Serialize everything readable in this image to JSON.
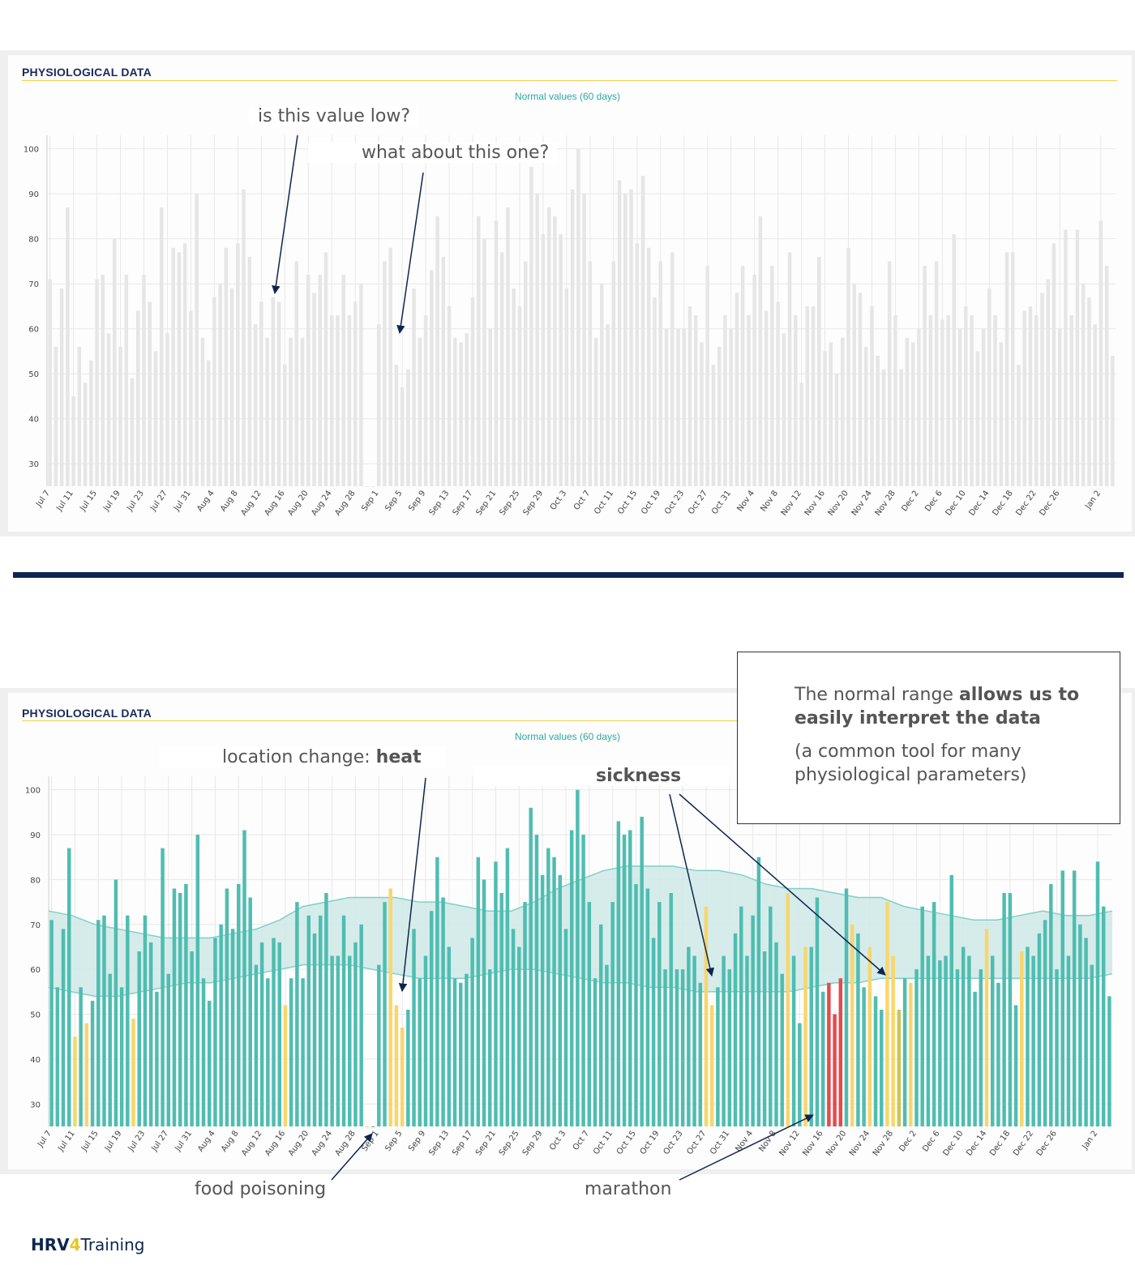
{
  "panel_title": "PHYSIOLOGICAL DATA",
  "legend_label": "Normal values (60 days)",
  "top_notes": {
    "q1": "is this value low?",
    "q2": "what about this one?"
  },
  "bottom_notes": {
    "heat_prefix": "location change: ",
    "heat_bold": "heat",
    "sickness": "sickness",
    "food": "food poisoning",
    "marathon": "marathon"
  },
  "info_box": {
    "line1_prefix": "The normal range ",
    "line1_bold": "allows us to easily interpret the data",
    "line2": "(a common tool for many physiological parameters)"
  },
  "logo": {
    "part1": "HRV",
    "part2": "4",
    "part3": "Training"
  },
  "colors": {
    "gray_bar": "#e6e6e6",
    "teal_bar": "#4fbdb1",
    "yellow_bar": "#f7d66b",
    "red_bar": "#e44b4b",
    "olive_bar": "#c8c65a",
    "band_fill": "#cfe9e6",
    "band_line": "#7fd0c8"
  },
  "chart_data": {
    "type": "bar",
    "start_date": "Jul 7",
    "end_date": "Jan 2",
    "x_tick_labels": [
      "Jul 7",
      "Jul 11",
      "Jul 15",
      "Jul 19",
      "Jul 23",
      "Jul 27",
      "Jul 31",
      "Aug 4",
      "Aug 8",
      "Aug 12",
      "Aug 16",
      "Aug 20",
      "Aug 24",
      "Aug 28",
      "Sep 1",
      "Sep 5",
      "Sep 9",
      "Sep 13",
      "Sep 17",
      "Sep 21",
      "Sep 25",
      "Sep 29",
      "Oct 3",
      "Oct 7",
      "Oct 11",
      "Oct 15",
      "Oct 19",
      "Oct 23",
      "Oct 27",
      "Oct 31",
      "Nov 4",
      "Nov 8",
      "Nov 12",
      "Nov 16",
      "Nov 20",
      "Nov 24",
      "Nov 28",
      "Dec 2",
      "Dec 6",
      "Dec 10",
      "Dec 14",
      "Dec 18",
      "Dec 22",
      "Dec 26",
      "Jan 2"
    ],
    "y_ticks": [
      30,
      40,
      50,
      60,
      70,
      80,
      90,
      100
    ],
    "ylim": [
      25,
      103
    ],
    "grid": true,
    "values": [
      71,
      56,
      69,
      87,
      45,
      56,
      48,
      53,
      71,
      72,
      59,
      80,
      56,
      72,
      49,
      64,
      72,
      66,
      55,
      87,
      59,
      78,
      77,
      79,
      64,
      90,
      58,
      53,
      67,
      70,
      78,
      69,
      79,
      91,
      76,
      61,
      66,
      58,
      67,
      66,
      52,
      58,
      75,
      58,
      72,
      68,
      72,
      77,
      63,
      63,
      72,
      63,
      66,
      70,
      25,
      25,
      61,
      75,
      78,
      52,
      47,
      51,
      69,
      58,
      63,
      73,
      85,
      76,
      65,
      58,
      57,
      59,
      67,
      85,
      80,
      60,
      84,
      77,
      87,
      69,
      65,
      75,
      96,
      90,
      81,
      87,
      85,
      81,
      69,
      91,
      100,
      90,
      75,
      58,
      70,
      61,
      75,
      93,
      90,
      91,
      79,
      94,
      78,
      67,
      75,
      60,
      77,
      60,
      60,
      65,
      63,
      57,
      74,
      52,
      56,
      63,
      60,
      68,
      74,
      63,
      72,
      85,
      64,
      74,
      66,
      59,
      77,
      63,
      48,
      65,
      65,
      76,
      55,
      57,
      50,
      58,
      78,
      70,
      68,
      56,
      65,
      54,
      51,
      75,
      63,
      51,
      58,
      57,
      60,
      74,
      63,
      75,
      62,
      63,
      81,
      60,
      65,
      63,
      55,
      60,
      69,
      63,
      57,
      77,
      77,
      52,
      64,
      65,
      63,
      68,
      71,
      79,
      60,
      82,
      63,
      82,
      70,
      67,
      61,
      84,
      74,
      54
    ],
    "status": "per-bar color in the colored chart: 'T' teal (within normal range), 'Y' yellow (below range), 'R' red (well below range), 'O' olive (above range)",
    "status_codes": "TTTTYTYTTTTTTTYTTTTTTTTTTTTTTTTTTTTTTTTTYTTTTTTTTTTTTTYTTTYYYTTTTTTTTTTTTTTTTTTTTTTTTTTTTTTTTTTTTTTTTTTTTTTTTTTTYYTTTTTTTTTTTTYTTYTTTRRRTYTTYTTYYOTYTTTTTTTTTTTTYTTTTTYTTTTTTTTTTTTTTTTY",
    "normal_range": {
      "series_name": "Normal values (60 days)",
      "upper": [
        73,
        72,
        70,
        69,
        68,
        67,
        67,
        67,
        68,
        69,
        71,
        74,
        75,
        76,
        76,
        76,
        75,
        75,
        74,
        73,
        73,
        75,
        78,
        80,
        82,
        83,
        83,
        83,
        82,
        82,
        81,
        79,
        78,
        78,
        77,
        76,
        76,
        74,
        73,
        72,
        71,
        71,
        72,
        73,
        72,
        72,
        73
      ],
      "lower": [
        56,
        55,
        54,
        54,
        55,
        56,
        57,
        57,
        58,
        59,
        60,
        61,
        61,
        61,
        60,
        59,
        58,
        58,
        58,
        59,
        60,
        60,
        59,
        58,
        57,
        57,
        56,
        56,
        55,
        55,
        55,
        55,
        55,
        56,
        57,
        57,
        58,
        58,
        58,
        58,
        58,
        58,
        58,
        58,
        58,
        58,
        59
      ]
    }
  }
}
